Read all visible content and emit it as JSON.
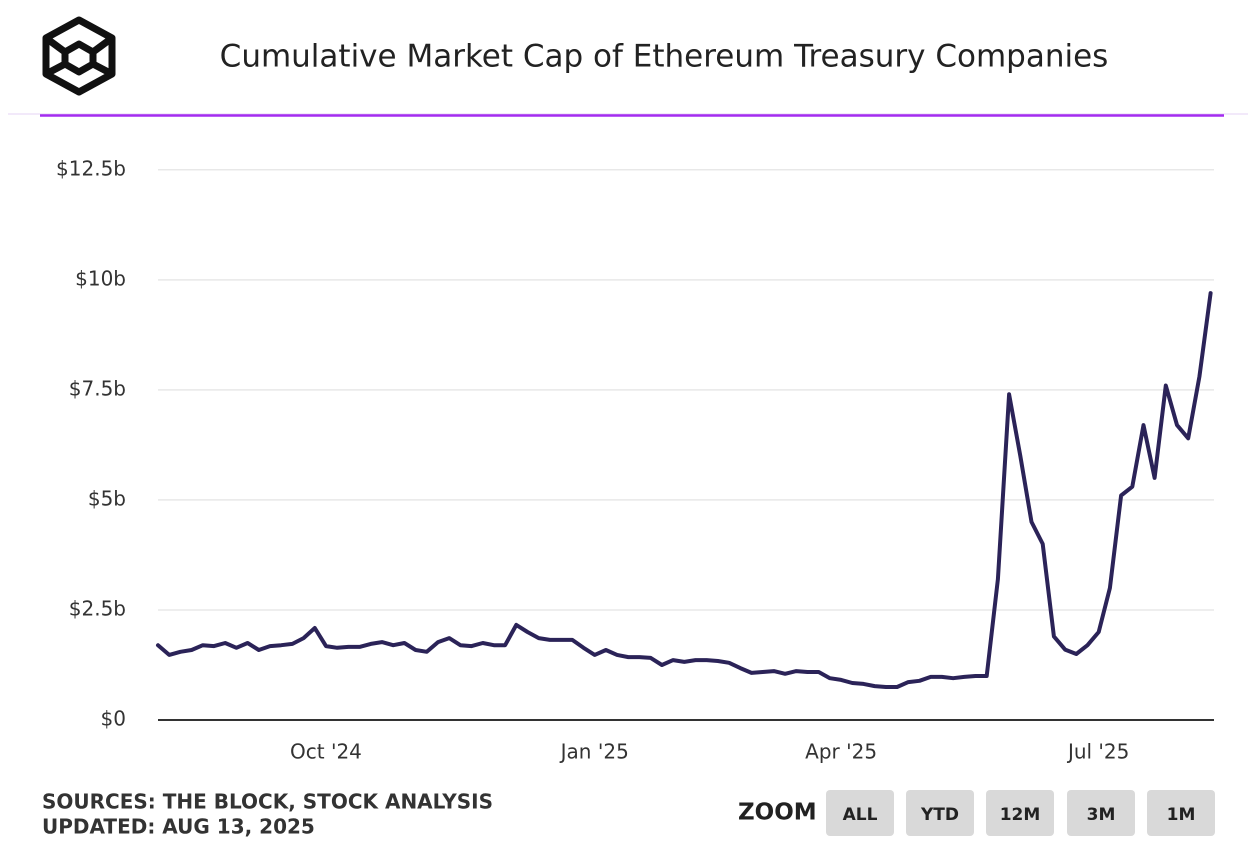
{
  "chart_data": {
    "type": "line",
    "title": "Cumulative Market Cap of Ethereum Treasury Companies",
    "color": "#2b2358",
    "categories": [
      null,
      null,
      null,
      null,
      null,
      null,
      null,
      null,
      null,
      null,
      null,
      null,
      null,
      null,
      null,
      "Oct '24",
      null,
      null,
      null,
      null,
      null,
      null,
      null,
      null,
      null,
      null,
      null,
      null,
      null,
      null,
      null,
      null,
      null,
      null,
      null,
      null,
      null,
      null,
      null,
      "Jan '25",
      null,
      null,
      null,
      null,
      null,
      null,
      null,
      null,
      null,
      null,
      null,
      null,
      null,
      null,
      null,
      null,
      null,
      null,
      null,
      null,
      null,
      "Apr '25",
      null,
      null,
      null,
      null,
      null,
      null,
      null,
      null,
      null,
      null,
      null,
      null,
      null,
      null,
      null,
      null,
      null,
      null,
      null,
      null,
      null,
      null,
      "Jul '25",
      null,
      null,
      null,
      null,
      null,
      null,
      null,
      null,
      null,
      null
    ],
    "values": [
      1.7,
      1.48,
      1.55,
      1.59,
      1.7,
      1.68,
      1.75,
      1.64,
      1.75,
      1.59,
      1.68,
      1.7,
      1.73,
      1.86,
      2.09,
      1.68,
      1.64,
      1.66,
      1.66,
      1.73,
      1.77,
      1.7,
      1.75,
      1.59,
      1.55,
      1.77,
      1.86,
      1.7,
      1.68,
      1.75,
      1.7,
      1.7,
      2.16,
      2.0,
      1.86,
      1.82,
      1.82,
      1.82,
      1.64,
      1.48,
      1.59,
      1.48,
      1.43,
      1.43,
      1.41,
      1.25,
      1.36,
      1.32,
      1.36,
      1.36,
      1.34,
      1.3,
      1.18,
      1.07,
      1.09,
      1.11,
      1.05,
      1.11,
      1.09,
      1.09,
      0.95,
      0.91,
      0.84,
      0.82,
      0.77,
      0.75,
      0.75,
      0.86,
      0.89,
      0.98,
      0.98,
      0.95,
      0.98,
      1.0,
      1.0,
      3.2,
      7.4,
      6.0,
      4.5,
      4.0,
      1.9,
      1.6,
      1.5,
      1.7,
      2.0,
      3.0,
      5.1,
      5.3,
      6.7,
      5.5,
      7.6,
      6.7,
      6.4,
      7.8,
      9.7
    ],
    "ylim": [
      0,
      13.2
    ],
    "yticks": [
      {
        "value": 0,
        "label": "$0"
      },
      {
        "value": 2.5,
        "label": "$2.5b"
      },
      {
        "value": 5,
        "label": "$5b"
      },
      {
        "value": 7.5,
        "label": "$7.5b"
      },
      {
        "value": 10,
        "label": "$10b"
      },
      {
        "value": 12.5,
        "label": "$12.5b"
      }
    ],
    "grid": true
  },
  "footer": {
    "sources": "SOURCES: THE BLOCK, STOCK ANALYSIS",
    "updated": "UPDATED: AUG 13, 2025"
  },
  "zoom": {
    "label": "ZOOM",
    "buttons": [
      "ALL",
      "YTD",
      "12M",
      "3M",
      "1M"
    ]
  }
}
